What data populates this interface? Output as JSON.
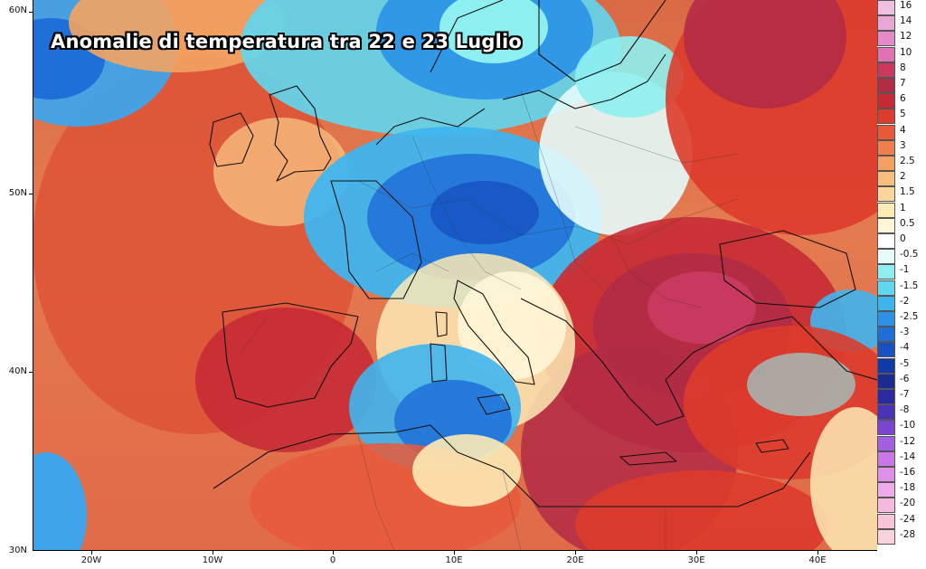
{
  "title": "Anomalie di temperatura tra 22 e 23 Luglio",
  "map": {
    "type": "temperature anomaly map",
    "region": "Europe",
    "lat_ticks": [
      "60N",
      "50N",
      "40N",
      "30N"
    ],
    "lon_ticks": [
      "20W",
      "10W",
      "0",
      "10E",
      "20E",
      "30E",
      "40E"
    ]
  },
  "legend": {
    "items": [
      {
        "label": "16",
        "color": "#f0c0e0"
      },
      {
        "label": "14",
        "color": "#eaa7d6"
      },
      {
        "label": "12",
        "color": "#e58ac6"
      },
      {
        "label": "10",
        "color": "#de72b3"
      },
      {
        "label": "8",
        "color": "#c8395d"
      },
      {
        "label": "7",
        "color": "#b22c45"
      },
      {
        "label": "6",
        "color": "#c62b34"
      },
      {
        "label": "5",
        "color": "#dd3b2b"
      },
      {
        "label": "4",
        "color": "#e8593a"
      },
      {
        "label": "3",
        "color": "#f07d4c"
      },
      {
        "label": "2.5",
        "color": "#f5a063"
      },
      {
        "label": "2",
        "color": "#f8be7e"
      },
      {
        "label": "1.5",
        "color": "#fbd69a"
      },
      {
        "label": "1",
        "color": "#fdeab5"
      },
      {
        "label": "0.5",
        "color": "#fff6d8"
      },
      {
        "label": "0",
        "color": "#ffffff"
      },
      {
        "label": "-0.5",
        "color": "#e6fbfb"
      },
      {
        "label": "-1",
        "color": "#8eeff0"
      },
      {
        "label": "-1.5",
        "color": "#5fd7ef"
      },
      {
        "label": "-2",
        "color": "#3fb5ee"
      },
      {
        "label": "-2.5",
        "color": "#2b92e8"
      },
      {
        "label": "-3",
        "color": "#1f6fd8"
      },
      {
        "label": "-4",
        "color": "#1751c2"
      },
      {
        "label": "-5",
        "color": "#0f3aa8"
      },
      {
        "label": "-6",
        "color": "#1a2c92"
      },
      {
        "label": "-7",
        "color": "#2c2aa0"
      },
      {
        "label": "-8",
        "color": "#4b33b8"
      },
      {
        "label": "-10",
        "color": "#7a45d0"
      },
      {
        "label": "-12",
        "color": "#a45ee0"
      },
      {
        "label": "-14",
        "color": "#c876e8"
      },
      {
        "label": "-16",
        "color": "#de8fe8"
      },
      {
        "label": "-18",
        "color": "#eeaaea"
      },
      {
        "label": "-20",
        "color": "#f5b8df"
      },
      {
        "label": "-24",
        "color": "#f7c4d8"
      },
      {
        "label": "-28",
        "color": "#fad2dc"
      }
    ]
  }
}
